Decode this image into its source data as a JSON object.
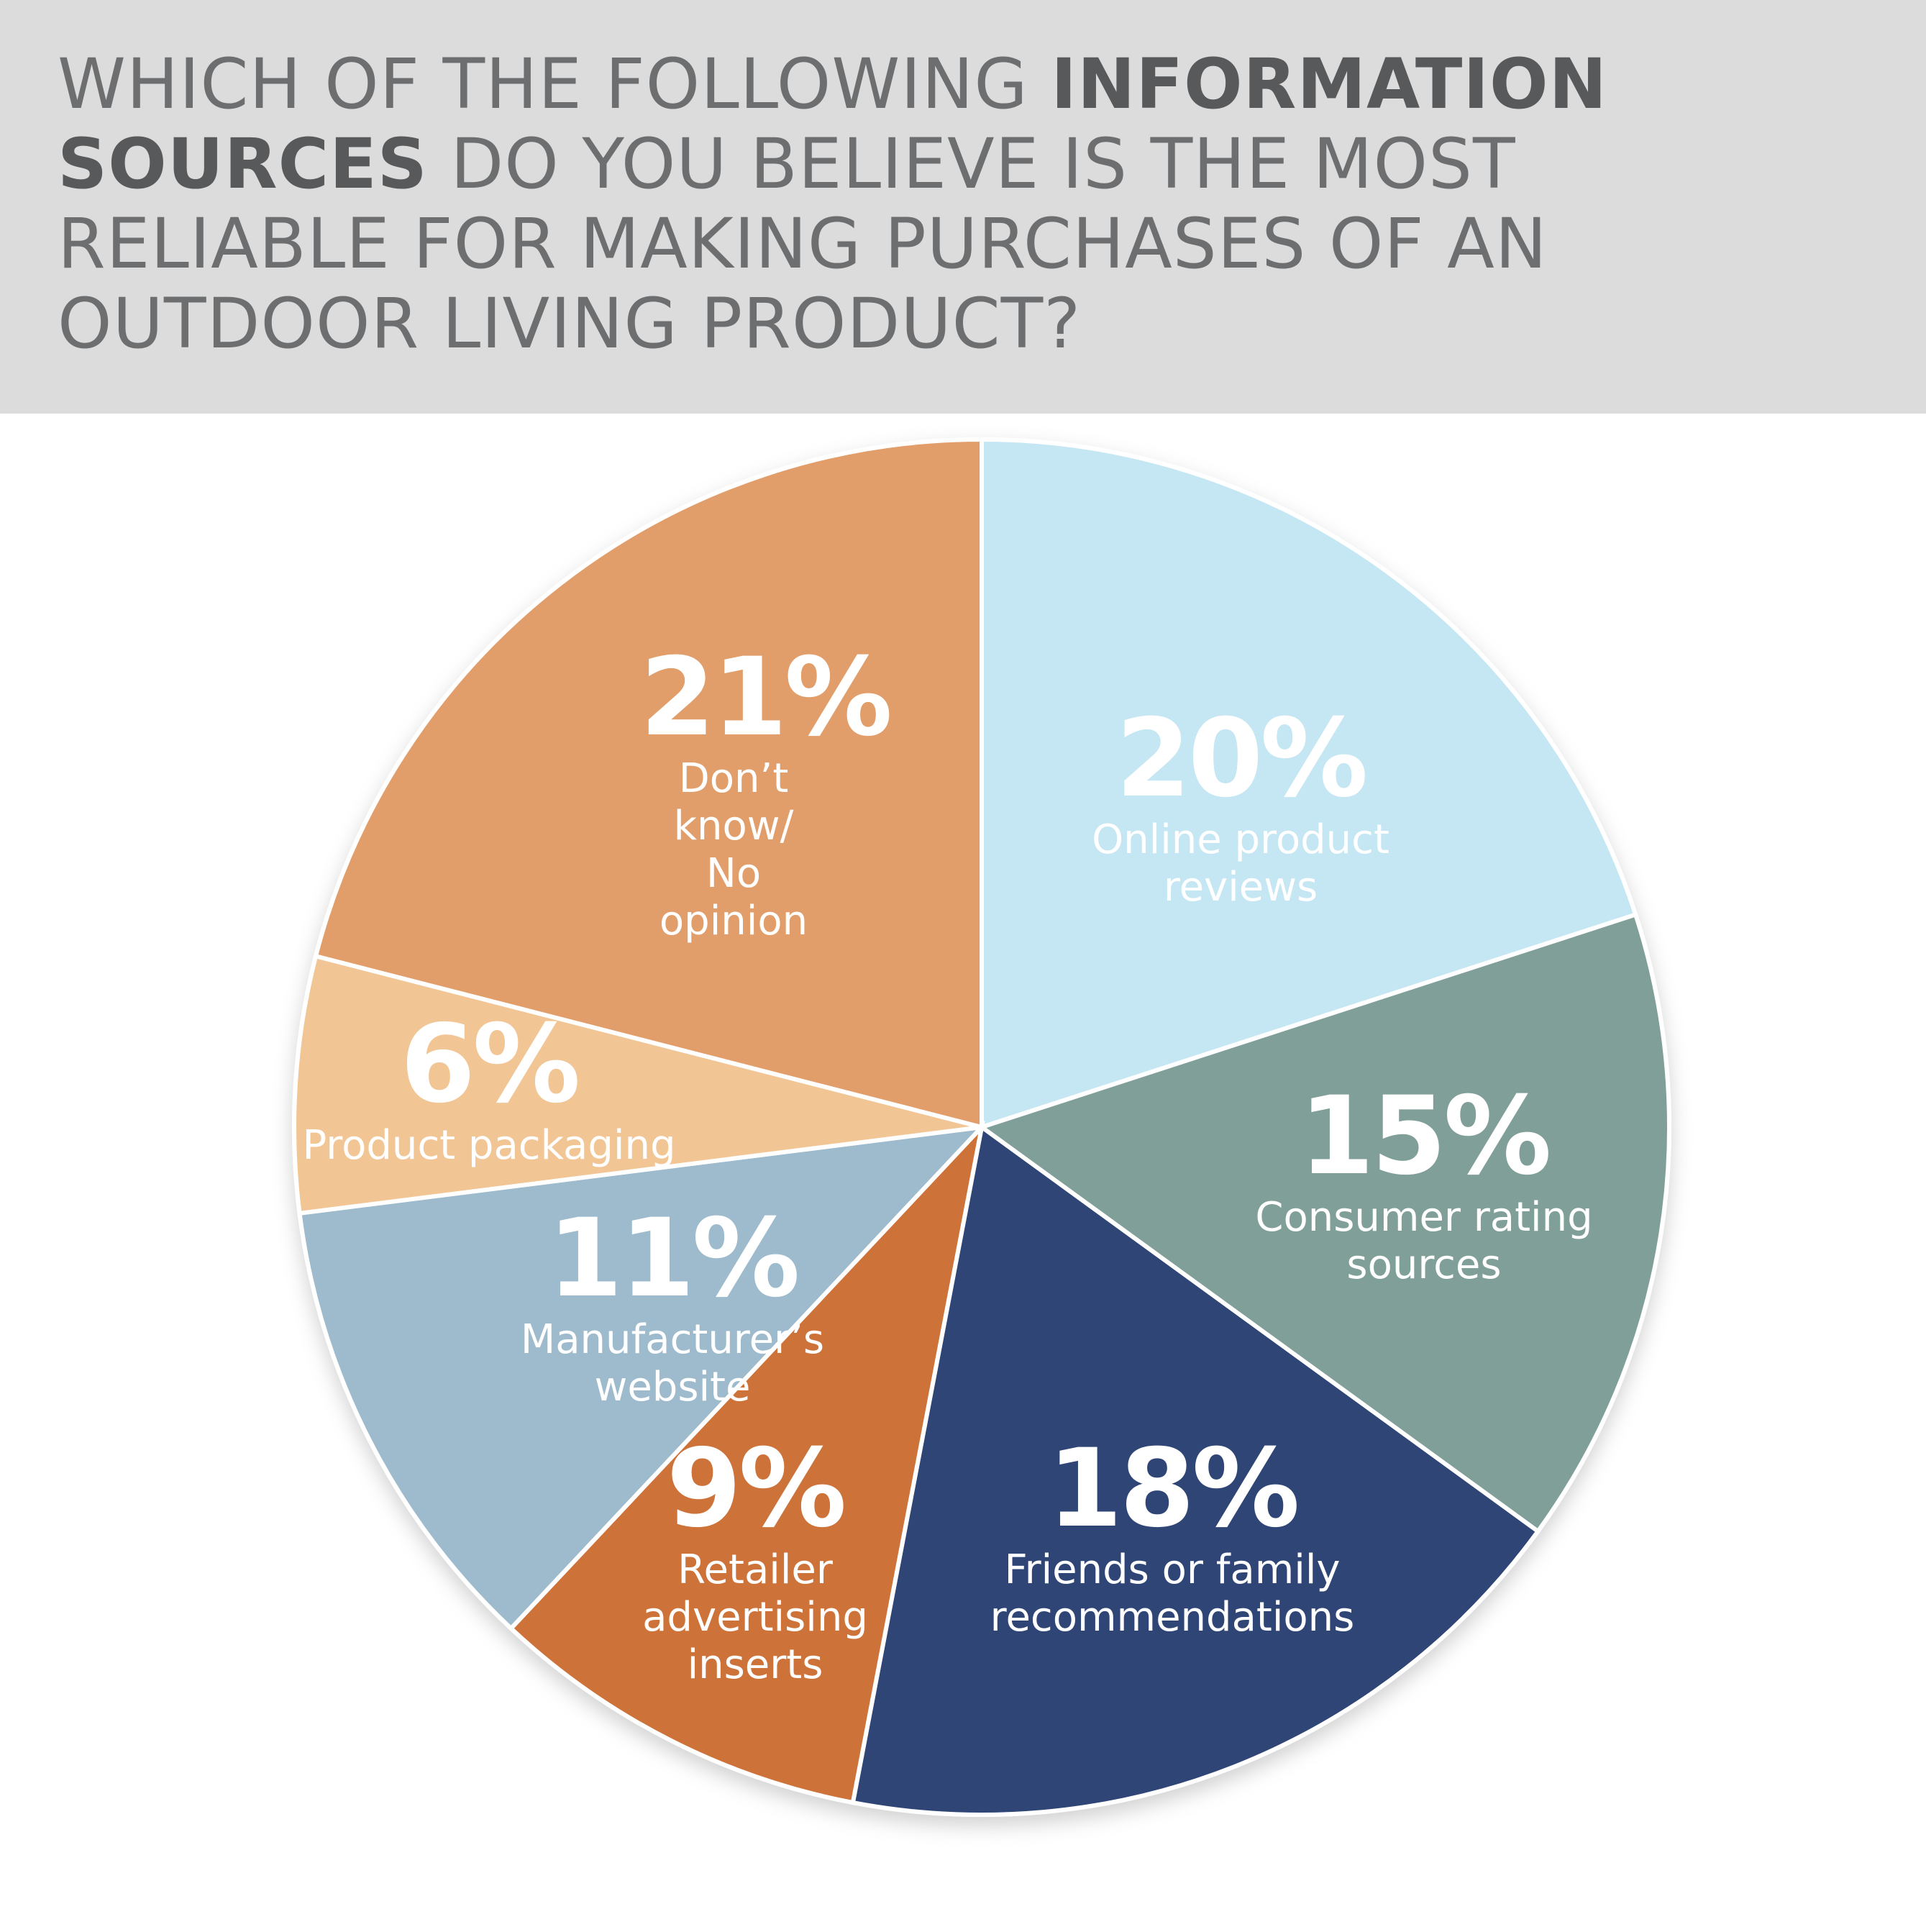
{
  "chart_data": {
    "type": "pie",
    "title": [
      {
        "text": "WHICH OF THE FOLLOWING ",
        "bold": false
      },
      {
        "text": "INFORMATION SOURCES",
        "bold": true
      },
      {
        "text": " DO YOU BELIEVE IS THE MOST RELIABLE FOR MAKING PURCHASES OF AN OUTDOOR LIVING PRODUCT?",
        "bold": false
      }
    ],
    "categories": [
      "Online product reviews",
      "Consumer rating sources",
      "Friends or family recommendations",
      "Retailer advertising inserts",
      "Manufacturer’s website",
      "Product packaging",
      "Don’t know/ No opinion"
    ],
    "values": [
      20,
      15,
      18,
      9,
      11,
      6,
      21
    ],
    "value_labels": [
      "20%",
      "15%",
      "18%",
      "9%",
      "11%",
      "6%",
      "21%"
    ],
    "colors": [
      "#c5e6f3",
      "#809f98",
      "#2e4576",
      "#cd7239",
      "#9dbbcc",
      "#f2c595",
      "#e29e6b"
    ]
  }
}
